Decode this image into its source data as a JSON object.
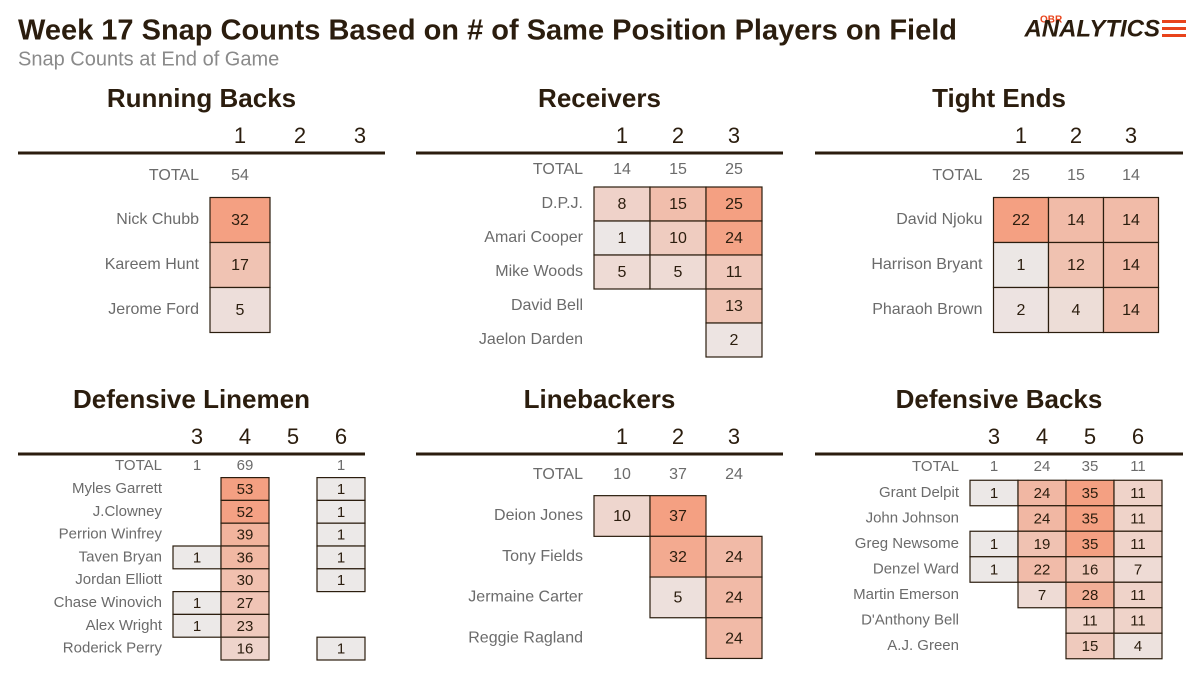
{
  "header": {
    "title": "Week 17 Snap Counts Based on # of Same Position Players on Field",
    "subtitle": "Snap Counts at End of Game",
    "logo_prefix": "OBR",
    "logo": "ANALYTICS"
  },
  "panels": [
    {
      "title": "Running Backs",
      "columns": [
        1,
        2,
        3
      ],
      "total_label": "TOTAL",
      "totals": [
        54,
        null,
        null
      ],
      "rows": [
        {
          "name": "Nick Chubb",
          "values": [
            32,
            null,
            null
          ]
        },
        {
          "name": "Kareem Hunt",
          "values": [
            17,
            null,
            null
          ]
        },
        {
          "name": "Jerome Ford",
          "values": [
            5,
            null,
            null
          ]
        }
      ]
    },
    {
      "title": "Receivers",
      "columns": [
        1,
        2,
        3
      ],
      "total_label": "TOTAL",
      "totals": [
        14,
        15,
        25
      ],
      "rows": [
        {
          "name": "D.P.J.",
          "values": [
            8,
            15,
            25
          ]
        },
        {
          "name": "Amari Cooper",
          "values": [
            1,
            10,
            24
          ]
        },
        {
          "name": "Mike Woods",
          "values": [
            5,
            5,
            11
          ]
        },
        {
          "name": "David Bell",
          "values": [
            null,
            null,
            13
          ]
        },
        {
          "name": "Jaelon Darden",
          "values": [
            null,
            null,
            2
          ]
        }
      ]
    },
    {
      "title": "Tight Ends",
      "columns": [
        1,
        2,
        3
      ],
      "total_label": "TOTAL",
      "totals": [
        25,
        15,
        14
      ],
      "rows": [
        {
          "name": "David Njoku",
          "values": [
            22,
            14,
            14
          ]
        },
        {
          "name": "Harrison Bryant",
          "values": [
            1,
            12,
            14
          ]
        },
        {
          "name": "Pharaoh Brown",
          "values": [
            2,
            4,
            14
          ]
        }
      ]
    },
    {
      "title": "Defensive Linemen",
      "columns": [
        3,
        4,
        5,
        6
      ],
      "total_label": "TOTAL",
      "totals": [
        1,
        69,
        null,
        1
      ],
      "rows": [
        {
          "name": "Myles Garrett",
          "values": [
            null,
            53,
            null,
            1
          ]
        },
        {
          "name": "J.Clowney",
          "values": [
            null,
            52,
            null,
            1
          ]
        },
        {
          "name": "Perrion Winfrey",
          "values": [
            null,
            39,
            null,
            1
          ]
        },
        {
          "name": "Taven Bryan",
          "values": [
            1,
            36,
            null,
            1
          ]
        },
        {
          "name": "Jordan Elliott",
          "values": [
            null,
            30,
            null,
            1
          ]
        },
        {
          "name": "Chase Winovich",
          "values": [
            1,
            27,
            null,
            null
          ]
        },
        {
          "name": "Alex Wright",
          "values": [
            1,
            23,
            null,
            null
          ]
        },
        {
          "name": "Roderick Perry",
          "values": [
            null,
            16,
            null,
            1
          ]
        }
      ]
    },
    {
      "title": "Linebackers",
      "columns": [
        1,
        2,
        3
      ],
      "total_label": "TOTAL",
      "totals": [
        10,
        37,
        24
      ],
      "rows": [
        {
          "name": "Deion Jones",
          "values": [
            10,
            37,
            null
          ]
        },
        {
          "name": "Tony Fields",
          "values": [
            null,
            32,
            24
          ]
        },
        {
          "name": "Jermaine Carter",
          "values": [
            null,
            5,
            24
          ]
        },
        {
          "name": "Reggie Ragland",
          "values": [
            null,
            null,
            24
          ]
        }
      ]
    },
    {
      "title": "Defensive Backs",
      "columns": [
        3,
        4,
        5,
        6
      ],
      "total_label": "TOTAL",
      "totals": [
        1,
        24,
        35,
        11
      ],
      "rows": [
        {
          "name": "Grant Delpit",
          "values": [
            1,
            24,
            35,
            11
          ]
        },
        {
          "name": "John Johnson",
          "values": [
            null,
            24,
            35,
            11
          ]
        },
        {
          "name": "Greg Newsome",
          "values": [
            1,
            19,
            35,
            11
          ]
        },
        {
          "name": "Denzel Ward",
          "values": [
            1,
            22,
            16,
            7
          ]
        },
        {
          "name": "Martin Emerson",
          "values": [
            null,
            7,
            28,
            11
          ]
        },
        {
          "name": "D'Anthony Bell",
          "values": [
            null,
            null,
            11,
            11
          ]
        },
        {
          "name": "A.J. Green",
          "values": [
            null,
            null,
            15,
            4
          ]
        }
      ]
    }
  ]
}
